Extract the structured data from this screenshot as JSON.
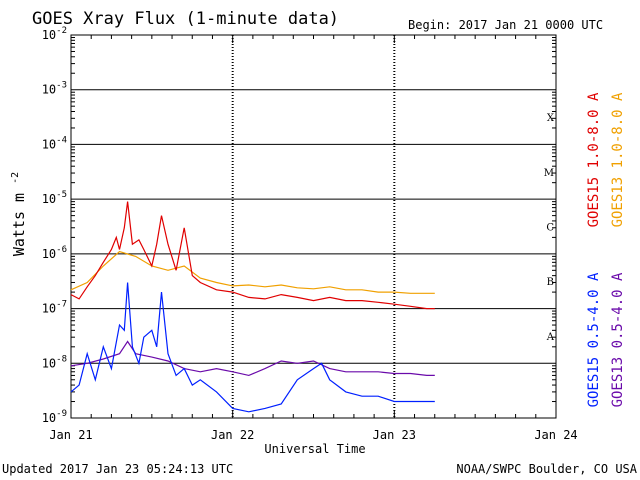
{
  "header": {
    "title": "GOES Xray Flux (1-minute data)",
    "begin": "Begin:  2017 Jan 21 0000 UTC"
  },
  "footer": {
    "updated": "Updated 2017 Jan 23 05:24:13 UTC",
    "credit": "NOAA/SWPC Boulder, CO USA"
  },
  "chart_data": {
    "type": "line",
    "title": "GOES Xray Flux (1-minute data)",
    "xlabel": "Universal Time",
    "ylabel": "Watts m",
    "ylabel_sup": "-2",
    "yscale": "log",
    "ylim": [
      1e-09,
      0.01
    ],
    "xlim_days": [
      0,
      3
    ],
    "x_ticks": [
      "Jan 21",
      "Jan 22",
      "Jan 23",
      "Jan 24"
    ],
    "y_ticks": [
      {
        "base": "10",
        "exp": "-2",
        "value": 0.01
      },
      {
        "base": "10",
        "exp": "-3",
        "value": 0.001
      },
      {
        "base": "10",
        "exp": "-4",
        "value": 0.0001
      },
      {
        "base": "10",
        "exp": "-5",
        "value": 1e-05
      },
      {
        "base": "10",
        "exp": "-6",
        "value": 1e-06
      },
      {
        "base": "10",
        "exp": "-7",
        "value": 1e-07
      },
      {
        "base": "10",
        "exp": "-8",
        "value": 1e-08
      },
      {
        "base": "10",
        "exp": "-9",
        "value": 1e-09
      }
    ],
    "flare_classes": [
      {
        "label": "X",
        "value": 0.0001
      },
      {
        "label": "M",
        "value": 1e-05
      },
      {
        "label": "C",
        "value": 1e-06
      },
      {
        "label": "B",
        "value": 1e-07
      },
      {
        "label": "A",
        "value": 1e-08
      }
    ],
    "grid": true,
    "series": [
      {
        "name": "GOES15 1.0-8.0 A",
        "color": "#e00000",
        "points": [
          [
            0.0,
            1.8e-07
          ],
          [
            0.05,
            1.5e-07
          ],
          [
            0.1,
            2.5e-07
          ],
          [
            0.15,
            4e-07
          ],
          [
            0.2,
            7e-07
          ],
          [
            0.25,
            1.2e-06
          ],
          [
            0.28,
            2e-06
          ],
          [
            0.3,
            1.2e-06
          ],
          [
            0.33,
            3e-06
          ],
          [
            0.35,
            9e-06
          ],
          [
            0.38,
            1.5e-06
          ],
          [
            0.42,
            1.8e-06
          ],
          [
            0.45,
            1.2e-06
          ],
          [
            0.5,
            6e-07
          ],
          [
            0.53,
            1.5e-06
          ],
          [
            0.56,
            5e-06
          ],
          [
            0.6,
            1.5e-06
          ],
          [
            0.65,
            5e-07
          ],
          [
            0.7,
            3e-06
          ],
          [
            0.75,
            4e-07
          ],
          [
            0.8,
            3e-07
          ],
          [
            0.9,
            2.2e-07
          ],
          [
            1.0,
            2e-07
          ],
          [
            1.1,
            1.6e-07
          ],
          [
            1.2,
            1.5e-07
          ],
          [
            1.3,
            1.8e-07
          ],
          [
            1.4,
            1.6e-07
          ],
          [
            1.5,
            1.4e-07
          ],
          [
            1.6,
            1.6e-07
          ],
          [
            1.7,
            1.4e-07
          ],
          [
            1.8,
            1.4e-07
          ],
          [
            1.9,
            1.3e-07
          ],
          [
            2.0,
            1.2e-07
          ],
          [
            2.1,
            1.1e-07
          ],
          [
            2.2,
            1e-07
          ],
          [
            2.25,
            1e-07
          ]
        ]
      },
      {
        "name": "GOES13 1.0-8.0 A",
        "color": "#f0a000",
        "points": [
          [
            0.0,
            2.2e-07
          ],
          [
            0.1,
            3e-07
          ],
          [
            0.2,
            6e-07
          ],
          [
            0.3,
            1.1e-06
          ],
          [
            0.4,
            9e-07
          ],
          [
            0.5,
            6e-07
          ],
          [
            0.6,
            5e-07
          ],
          [
            0.7,
            6e-07
          ],
          [
            0.8,
            3.6e-07
          ],
          [
            0.9,
            3e-07
          ],
          [
            1.0,
            2.6e-07
          ],
          [
            1.1,
            2.7e-07
          ],
          [
            1.2,
            2.5e-07
          ],
          [
            1.3,
            2.7e-07
          ],
          [
            1.4,
            2.4e-07
          ],
          [
            1.5,
            2.3e-07
          ],
          [
            1.6,
            2.5e-07
          ],
          [
            1.7,
            2.2e-07
          ],
          [
            1.8,
            2.2e-07
          ],
          [
            1.9,
            2e-07
          ],
          [
            2.0,
            2e-07
          ],
          [
            2.1,
            1.9e-07
          ],
          [
            2.2,
            1.9e-07
          ],
          [
            2.25,
            1.9e-07
          ]
        ]
      },
      {
        "name": "GOES15 0.5-4.0 A",
        "color": "#0020ff",
        "points": [
          [
            0.0,
            3e-09
          ],
          [
            0.05,
            4e-09
          ],
          [
            0.1,
            1.5e-08
          ],
          [
            0.15,
            5e-09
          ],
          [
            0.2,
            2e-08
          ],
          [
            0.25,
            8e-09
          ],
          [
            0.3,
            5e-08
          ],
          [
            0.33,
            4e-08
          ],
          [
            0.35,
            3e-07
          ],
          [
            0.38,
            2e-08
          ],
          [
            0.42,
            1e-08
          ],
          [
            0.45,
            3e-08
          ],
          [
            0.5,
            4e-08
          ],
          [
            0.53,
            2e-08
          ],
          [
            0.56,
            2e-07
          ],
          [
            0.6,
            1.5e-08
          ],
          [
            0.65,
            6e-09
          ],
          [
            0.7,
            8e-09
          ],
          [
            0.75,
            4e-09
          ],
          [
            0.8,
            5e-09
          ],
          [
            0.9,
            3e-09
          ],
          [
            1.0,
            1.5e-09
          ],
          [
            1.1,
            1.3e-09
          ],
          [
            1.2,
            1.5e-09
          ],
          [
            1.3,
            1.8e-09
          ],
          [
            1.4,
            5e-09
          ],
          [
            1.5,
            8e-09
          ],
          [
            1.55,
            1e-08
          ],
          [
            1.6,
            5e-09
          ],
          [
            1.7,
            3e-09
          ],
          [
            1.8,
            2.5e-09
          ],
          [
            1.9,
            2.5e-09
          ],
          [
            2.0,
            2e-09
          ],
          [
            2.1,
            2e-09
          ],
          [
            2.2,
            2e-09
          ],
          [
            2.25,
            2e-09
          ]
        ]
      },
      {
        "name": "GOES13 0.5-4.0 A",
        "color": "#6a0aaa",
        "points": [
          [
            0.0,
            9e-09
          ],
          [
            0.1,
            1e-08
          ],
          [
            0.2,
            1.2e-08
          ],
          [
            0.3,
            1.5e-08
          ],
          [
            0.35,
            2.5e-08
          ],
          [
            0.4,
            1.5e-08
          ],
          [
            0.5,
            1.3e-08
          ],
          [
            0.6,
            1.1e-08
          ],
          [
            0.7,
            8e-09
          ],
          [
            0.8,
            7e-09
          ],
          [
            0.9,
            8e-09
          ],
          [
            1.0,
            7e-09
          ],
          [
            1.1,
            6e-09
          ],
          [
            1.2,
            8e-09
          ],
          [
            1.3,
            1.1e-08
          ],
          [
            1.4,
            1e-08
          ],
          [
            1.5,
            1.1e-08
          ],
          [
            1.6,
            8e-09
          ],
          [
            1.7,
            7e-09
          ],
          [
            1.8,
            7e-09
          ],
          [
            1.9,
            7e-09
          ],
          [
            2.0,
            6.5e-09
          ],
          [
            2.1,
            6.5e-09
          ],
          [
            2.2,
            6e-09
          ],
          [
            2.25,
            6e-09
          ]
        ]
      }
    ]
  }
}
